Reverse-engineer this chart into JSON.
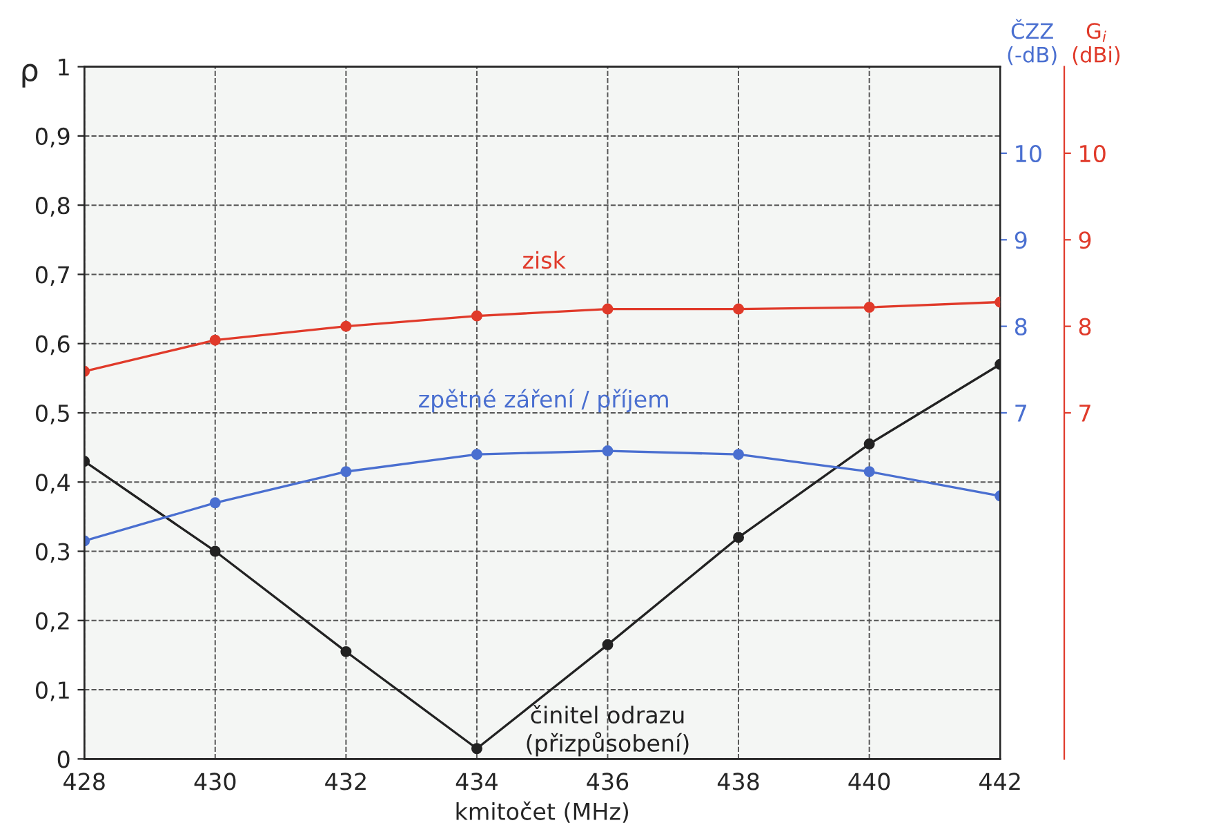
{
  "chart_data": {
    "type": "line",
    "x": [
      428,
      430,
      432,
      434,
      436,
      438,
      440,
      442
    ],
    "series": [
      {
        "name": "činitel odrazu\n(přizpůsobení)",
        "color": "#222222",
        "values": [
          0.43,
          0.3,
          0.155,
          0.015,
          0.165,
          0.32,
          0.455,
          0.57
        ]
      },
      {
        "name": "zisk",
        "color": "#e03a2a",
        "axis": "y3",
        "values": [
          7.48,
          7.84,
          8.0,
          8.12,
          8.2,
          8.2,
          8.22,
          8.28
        ]
      },
      {
        "name": "zpětné záření / příjem",
        "color": "#4a6fd0",
        "axis": "y2",
        "values": [
          5.52,
          5.96,
          6.32,
          6.52,
          6.56,
          6.52,
          6.32,
          6.04
        ]
      }
    ],
    "xlabel": "kmitočet (MHz)",
    "ylabel": "ρ",
    "y2label": "ČZZ (-dB)",
    "y3label": "G$_{i}$ (dBi)",
    "xlim": [
      428,
      442
    ],
    "xticks": [
      428,
      430,
      432,
      434,
      436,
      438,
      440,
      442
    ],
    "ylim": [
      0,
      1
    ],
    "yticks": [
      {
        "value": 0,
        "label": "0"
      },
      {
        "value": 0.1,
        "label": "0,1"
      },
      {
        "value": 0.2,
        "label": "0,2"
      },
      {
        "value": 0.3,
        "label": "0,3"
      },
      {
        "value": 0.4,
        "label": "0,4"
      },
      {
        "value": 0.5,
        "label": "0,5"
      },
      {
        "value": 0.6,
        "label": "0,6"
      },
      {
        "value": 0.7,
        "label": "0,7"
      },
      {
        "value": 0.8,
        "label": "0,8"
      },
      {
        "value": 0.9,
        "label": "0,9"
      },
      {
        "value": 1,
        "label": "1"
      }
    ],
    "y2lim": [
      3,
      11
    ],
    "y2ticks": [
      7,
      8,
      9,
      10
    ],
    "y3lim": [
      3,
      11
    ],
    "y3ticks": [
      7,
      8,
      9,
      10
    ],
    "grid": true,
    "marker": "circle",
    "line_style": "solid"
  }
}
